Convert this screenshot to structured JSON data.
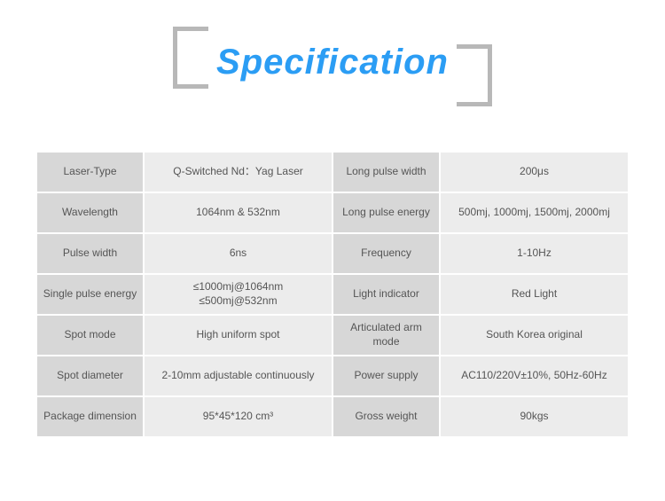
{
  "title": {
    "text": "Specification",
    "color": "#2b9df4",
    "bracket_color": "#b8b8b8",
    "fontsize": 40
  },
  "table": {
    "label_bg": "#d7d7d7",
    "value_bg": "#ececec",
    "text_color": "#555555",
    "fontsize": 12,
    "rows": [
      {
        "l1": "Laser-Type",
        "v1": "Q-Switched Nd：Yag Laser",
        "l2": "Long pulse width",
        "v2": "200μs"
      },
      {
        "l1": "Wavelength",
        "v1": "1064nm & 532nm",
        "l2": "Long pulse energy",
        "v2": "500mj, 1000mj, 1500mj, 2000mj"
      },
      {
        "l1": "Pulse width",
        "v1": "6ns",
        "l2": "Frequency",
        "v2": "1-10Hz"
      },
      {
        "l1": "Single pulse energy",
        "v1": "≤1000mj@1064nm\n≤500mj@532nm",
        "l2": "Light indicator",
        "v2": "Red Light"
      },
      {
        "l1": "Spot mode",
        "v1": "High uniform spot",
        "l2": "Articulated arm mode",
        "v2": "South Korea original"
      },
      {
        "l1": "Spot diameter",
        "v1": "2-10mm adjustable continuously",
        "l2": "Power supply",
        "v2": "AC110/220V±10%,   50Hz-60Hz"
      },
      {
        "l1": "Package dimension",
        "v1": "95*45*120 cm³",
        "l2": "Gross weight",
        "v2": "90kgs"
      }
    ]
  }
}
